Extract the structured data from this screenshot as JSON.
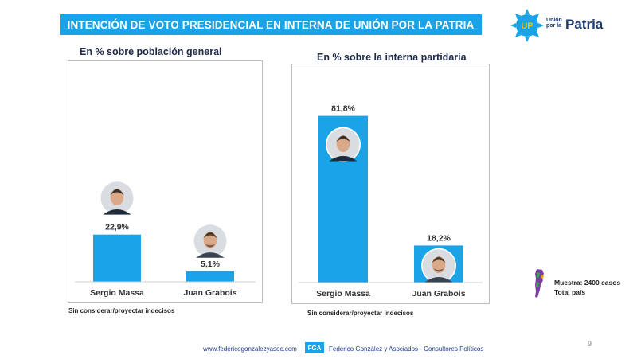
{
  "header": {
    "title": "INTENCIÓN DE VOTO PRESIDENCIAL EN INTERNA DE UNIÓN POR LA PATRIA"
  },
  "logo": {
    "badge": "UP",
    "small_line1": "Unión",
    "small_line2": "por la",
    "big": "Patria",
    "colors": {
      "sun": "#1aa3e6",
      "badge_text": "#f2c200",
      "text": "#1a3a6e"
    }
  },
  "chart_data": [
    {
      "type": "bar",
      "title": "En % sobre población general",
      "categories": [
        "Sergio Massa",
        "Juan Grabois"
      ],
      "values": [
        22.9,
        5.1
      ],
      "value_labels": [
        "22,9%",
        "5,1%"
      ],
      "ylim": [
        0,
        100
      ],
      "color": "#1aa3e6",
      "grid": false,
      "note": "Sin considerar/proyectar indecisos"
    },
    {
      "type": "bar",
      "title": "En % sobre la interna partidaria",
      "categories": [
        "Sergio Massa",
        "Juan Grabois"
      ],
      "values": [
        81.8,
        18.2
      ],
      "value_labels": [
        "81,8%",
        "18,2%"
      ],
      "ylim": [
        0,
        100
      ],
      "color": "#1aa3e6",
      "grid": false,
      "note": "Sin considerar/proyectar indecisos"
    }
  ],
  "sample": {
    "line1": "Muestra: 2400 casos",
    "line2": "Total país"
  },
  "footer": {
    "website": "www.federicogonzalezyasoc.com",
    "logo_text": "FGA",
    "company": "Federico González y Asociados - Consultores Políticos"
  },
  "page_number": "9"
}
